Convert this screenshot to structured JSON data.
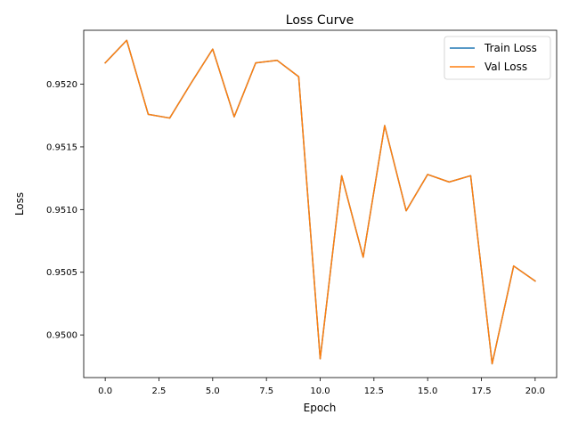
{
  "chart_data": {
    "type": "line",
    "title": "Loss Curve",
    "xlabel": "Epoch",
    "ylabel": "Loss",
    "xlim": [
      -1.0,
      21.0
    ],
    "ylim": [
      0.94966,
      0.95243
    ],
    "x_ticks": [
      0.0,
      2.5,
      5.0,
      7.5,
      10.0,
      12.5,
      15.0,
      17.5,
      20.0
    ],
    "x_tick_labels": [
      "0.0",
      "2.5",
      "5.0",
      "7.5",
      "10.0",
      "12.5",
      "15.0",
      "17.5",
      "20.0"
    ],
    "y_ticks": [
      0.95,
      0.9505,
      0.951,
      0.9515,
      0.952
    ],
    "y_tick_labels": [
      "0.9500",
      "0.9505",
      "0.9510",
      "0.9515",
      "0.9520"
    ],
    "grid": false,
    "legend_position": "top-right",
    "x": [
      0,
      1,
      2,
      3,
      4,
      5,
      6,
      7,
      8,
      9,
      10,
      11,
      12,
      13,
      14,
      15,
      16,
      17,
      18,
      19,
      20
    ],
    "series": [
      {
        "name": "Train Loss",
        "color": "#1f77b4",
        "values": [
          0.95217,
          0.95235,
          0.95176,
          0.95173,
          0.95201,
          0.95228,
          0.95174,
          0.95217,
          0.95219,
          0.95206,
          0.94981,
          0.95127,
          0.95062,
          0.95167,
          0.95099,
          0.95128,
          0.95122,
          0.95127,
          0.94977,
          0.95055,
          0.95043
        ]
      },
      {
        "name": "Val Loss",
        "color": "#ff7f0e",
        "values": [
          0.95217,
          0.95235,
          0.95176,
          0.95173,
          0.95201,
          0.95228,
          0.95174,
          0.95217,
          0.95219,
          0.95206,
          0.94981,
          0.95127,
          0.95062,
          0.95167,
          0.95099,
          0.95128,
          0.95122,
          0.95127,
          0.94977,
          0.95055,
          0.95043
        ]
      }
    ]
  }
}
